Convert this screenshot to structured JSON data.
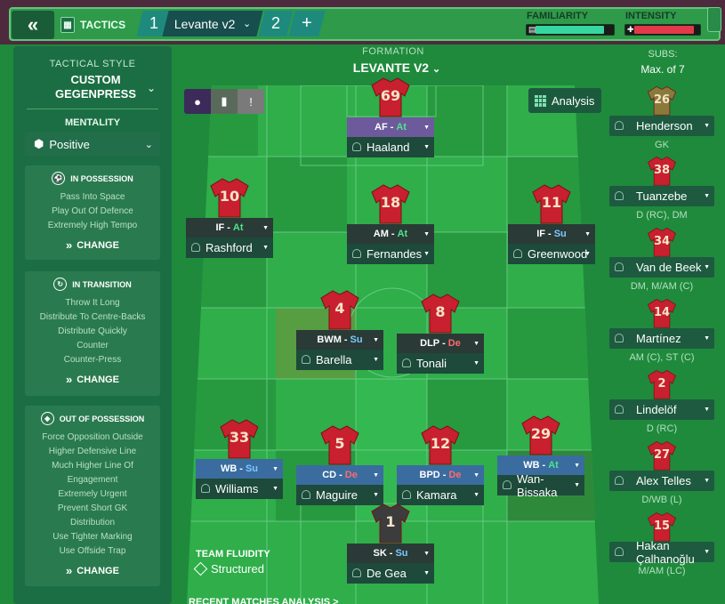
{
  "header": {
    "tactics_label": "TACTICS",
    "slot1": "1",
    "tactic_name": "Levante v2",
    "slot2": "2",
    "add": "+",
    "familiarity_label": "FAMILIARITY",
    "familiarity_level": 0.88,
    "intensity_label": "INTENSITY",
    "intensity_level": 0.9
  },
  "left": {
    "style_title": "TACTICAL STYLE",
    "style_value": "CUSTOM GEGENPRESS",
    "mentality_title": "MENTALITY",
    "mentality_value": "Positive",
    "in_possession": {
      "title": "IN POSSESSION",
      "items": [
        "Pass Into Space",
        "Play Out Of Defence",
        "Extremely High Tempo"
      ],
      "change": "CHANGE"
    },
    "in_transition": {
      "title": "IN TRANSITION",
      "items": [
        "Throw It Long",
        "Distribute To Centre-Backs",
        "Distribute Quickly",
        "Counter",
        "Counter-Press"
      ],
      "change": "CHANGE"
    },
    "out_of_possession": {
      "title": "OUT OF POSSESSION",
      "items": [
        "Force Opposition Outside",
        "Higher Defensive Line",
        "Much Higher Line Of",
        "Engagement",
        "Extremely Urgent",
        "Prevent Short GK",
        "Distribution",
        "Use Tighter Marking",
        "Use Offside Trap"
      ],
      "change": "CHANGE"
    }
  },
  "formation": {
    "label": "FORMATION",
    "name": "LEVANTE V2",
    "analysis": "Analysis"
  },
  "players": [
    {
      "num": "69",
      "role": "AF",
      "duty": "At",
      "name": "Haaland",
      "style": "purple"
    },
    {
      "num": "10",
      "role": "IF",
      "duty": "At",
      "name": "Rashford",
      "style": ""
    },
    {
      "num": "18",
      "role": "AM",
      "duty": "At",
      "name": "Fernandes",
      "style": ""
    },
    {
      "num": "11",
      "role": "IF",
      "duty": "Su",
      "name": "Greenwood",
      "style": ""
    },
    {
      "num": "4",
      "role": "BWM",
      "duty": "Su",
      "name": "Barella",
      "style": ""
    },
    {
      "num": "8",
      "role": "DLP",
      "duty": "De",
      "name": "Tonali",
      "style": ""
    },
    {
      "num": "33",
      "role": "WB",
      "duty": "Su",
      "name": "Williams",
      "style": "blue"
    },
    {
      "num": "5",
      "role": "CD",
      "duty": "De",
      "name": "Maguire",
      "style": "blue"
    },
    {
      "num": "12",
      "role": "BPD",
      "duty": "De",
      "name": "Kamara",
      "style": "blue"
    },
    {
      "num": "29",
      "role": "WB",
      "duty": "At",
      "name": "Wan-Bissaka",
      "style": "blue"
    },
    {
      "num": "1",
      "role": "SK",
      "duty": "Su",
      "name": "De Gea",
      "style": "gk"
    }
  ],
  "subs": {
    "label": "SUBS:",
    "max": "Max. of 7",
    "list": [
      {
        "num": "26",
        "name": "Henderson",
        "pos": "GK",
        "gk": true
      },
      {
        "num": "38",
        "name": "Tuanzebe",
        "pos": "D (RC), DM"
      },
      {
        "num": "34",
        "name": "Van de Beek",
        "pos": "DM, M/AM (C)"
      },
      {
        "num": "14",
        "name": "Martínez",
        "pos": "AM (C), ST (C)"
      },
      {
        "num": "2",
        "name": "Lindelöf",
        "pos": "D (RC)"
      },
      {
        "num": "27",
        "name": "Alex Telles",
        "pos": "D/WB (L)"
      },
      {
        "num": "15",
        "name": "Hakan Çalhanoğlu",
        "pos": "M/AM (LC)"
      }
    ]
  },
  "fluidity": {
    "title": "TEAM FLUIDITY",
    "value": "Structured"
  },
  "recent": "RECENT MATCHES ANALYSIS >",
  "colors": {
    "shirt": "#c8202e",
    "gk_shirt": "#3c3c3c",
    "pitch_light": "#2fae4a",
    "pitch_dark": "#24933c"
  }
}
